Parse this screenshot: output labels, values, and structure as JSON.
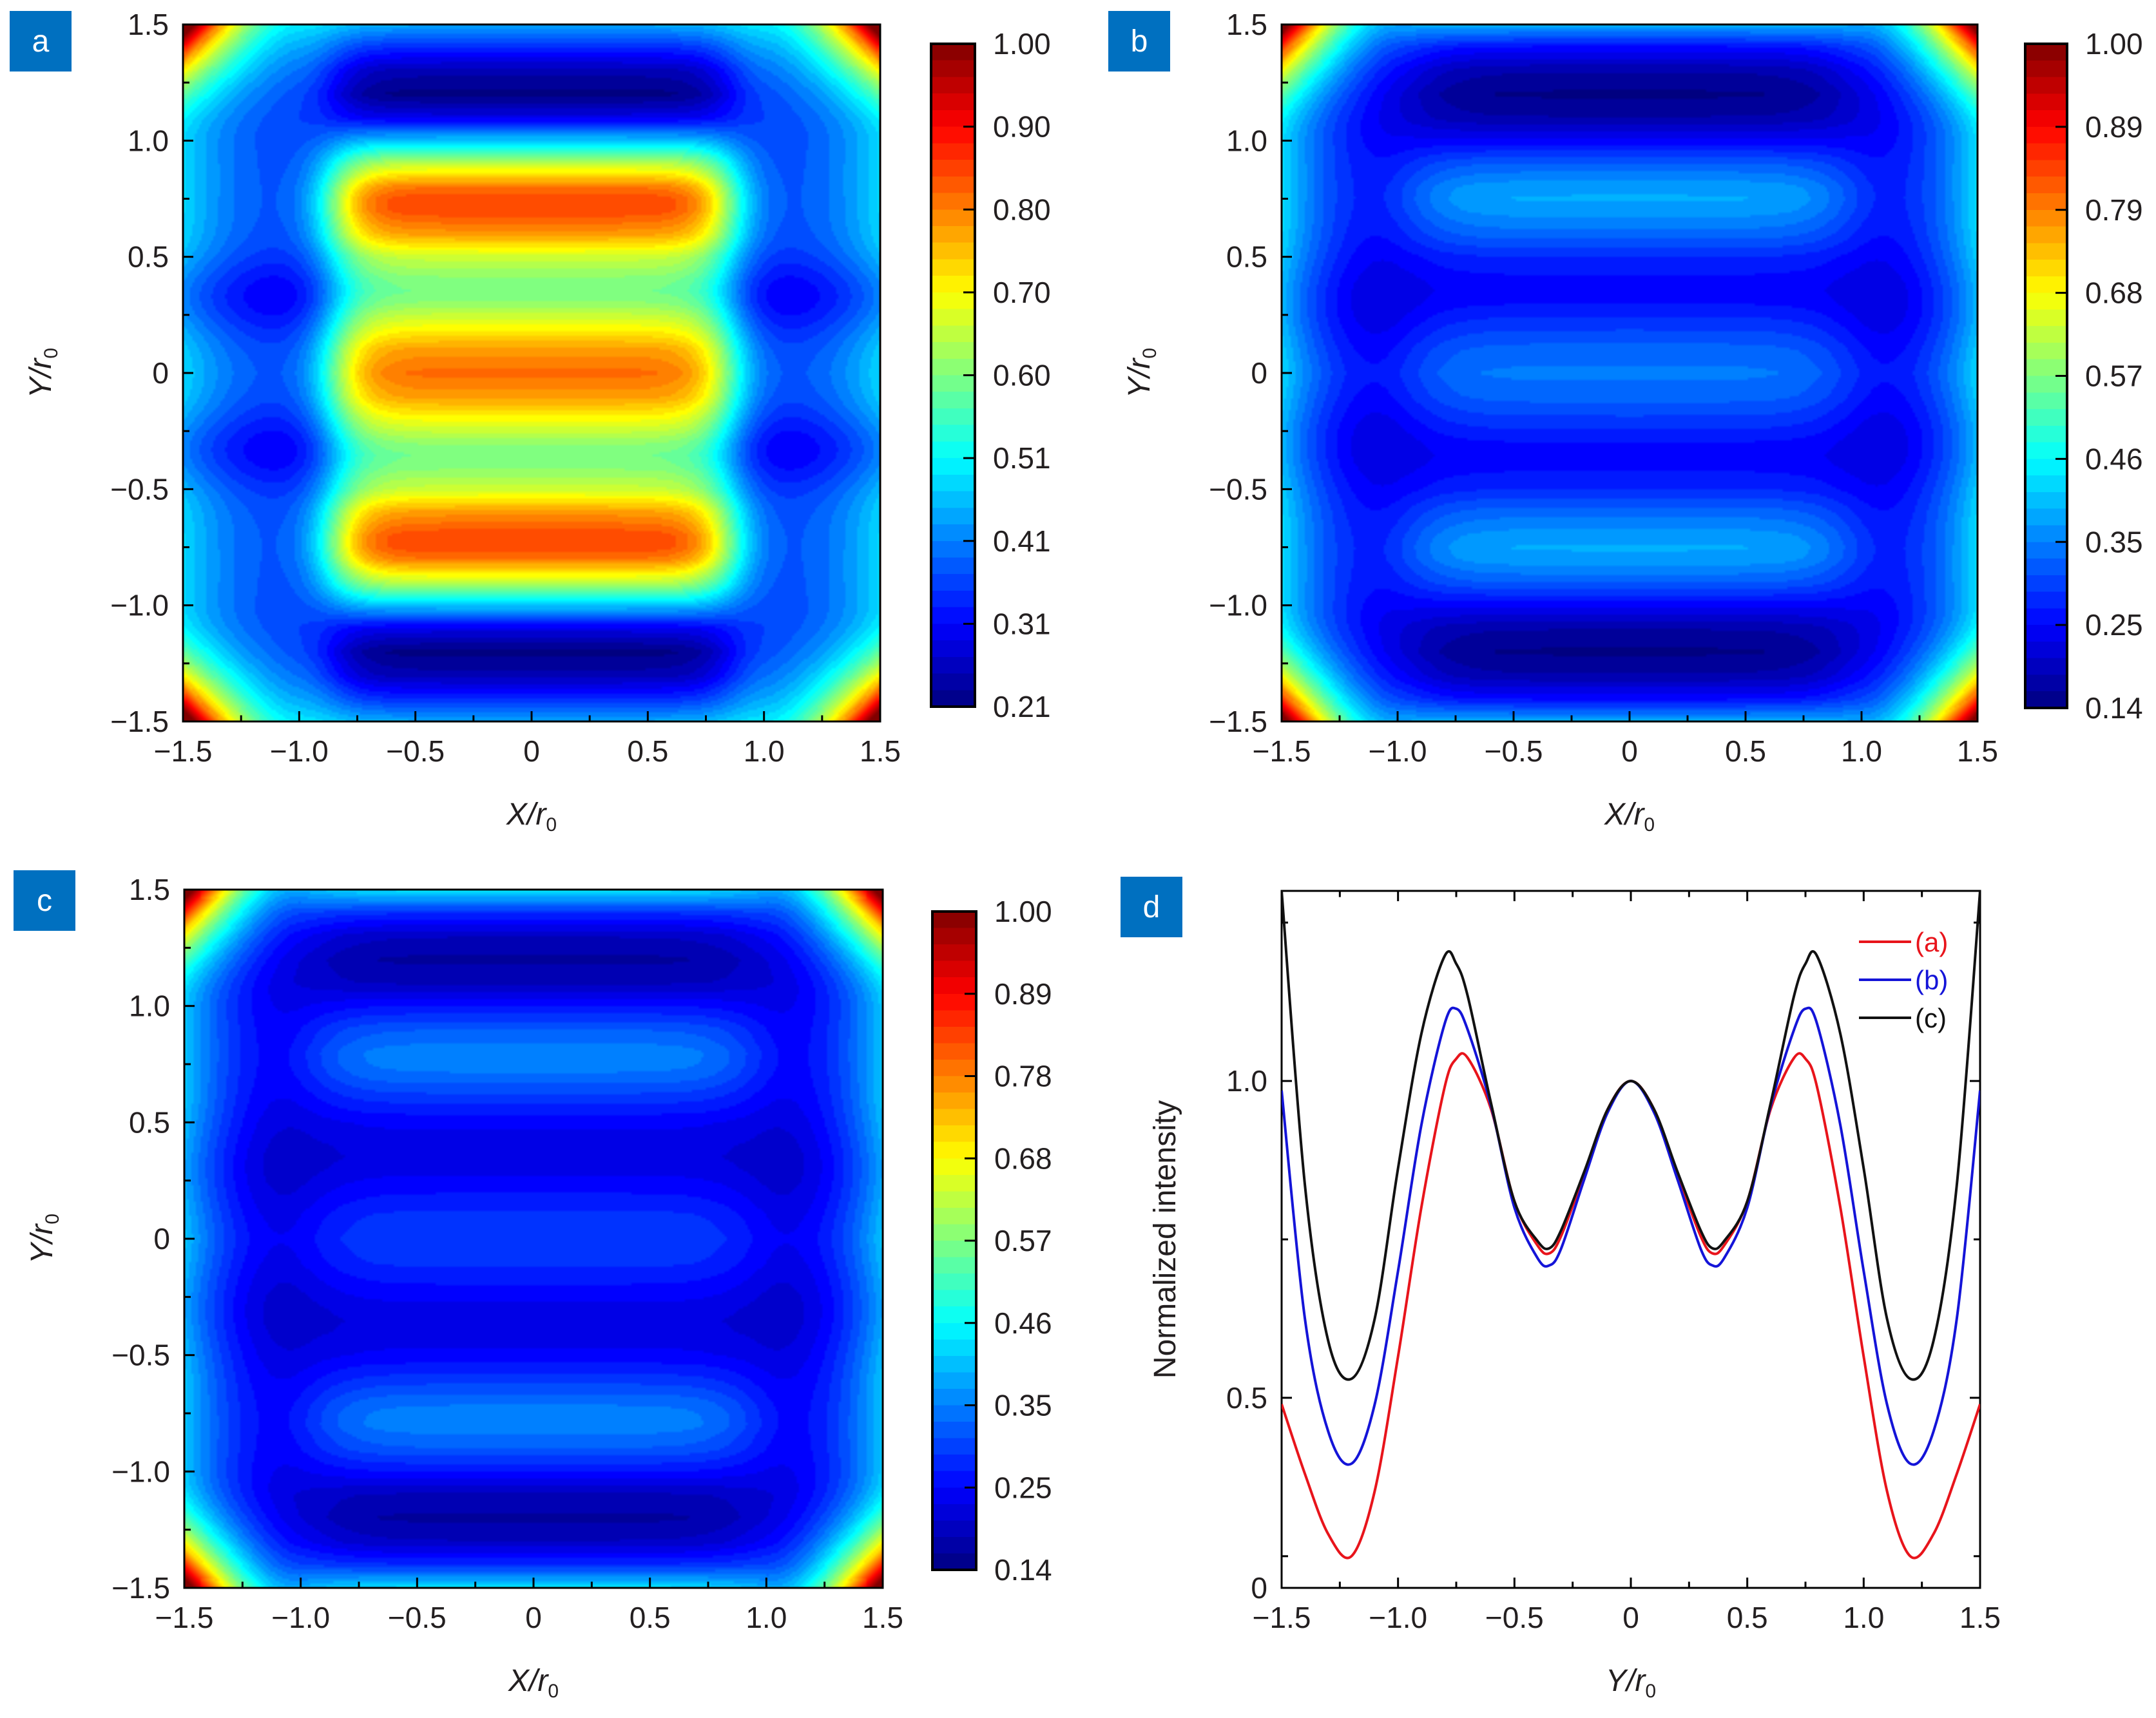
{
  "panel_label_color": "#0070c0",
  "chart_data": [
    {
      "panel": "a",
      "type": "heatmap",
      "colormap": "jet",
      "xlabel": "X/r0",
      "ylabel": "Y/r0",
      "xlim": [
        -1.5,
        1.5
      ],
      "ylim": [
        -1.5,
        1.5
      ],
      "xticks": [
        "-1.5",
        "-1.0",
        "-0.5",
        "0",
        "0.5",
        "1.0",
        "1.5"
      ],
      "yticks": [
        "-1.5",
        "-1.0",
        "-0.5",
        "0",
        "0.5",
        "1.0",
        "1.5"
      ],
      "colorbar": {
        "range": [
          0.21,
          1.0
        ],
        "ticks": [
          "1.00",
          "0.90",
          "0.80",
          "0.70",
          "0.60",
          "0.51",
          "0.41",
          "0.31",
          "0.21"
        ]
      },
      "profile_series": "(a)"
    },
    {
      "panel": "b",
      "type": "heatmap",
      "colormap": "jet",
      "xlabel": "X/r0",
      "ylabel": "Y/r0",
      "xlim": [
        -1.5,
        1.5
      ],
      "ylim": [
        -1.5,
        1.5
      ],
      "xticks": [
        "-1.5",
        "-1.0",
        "-0.5",
        "0",
        "0.5",
        "1.0",
        "1.5"
      ],
      "yticks": [
        "-1.5",
        "-1.0",
        "-0.5",
        "0",
        "0.5",
        "1.0",
        "1.5"
      ],
      "colorbar": {
        "range": [
          0.14,
          1.0
        ],
        "ticks": [
          "1.00",
          "0.89",
          "0.79",
          "0.68",
          "0.57",
          "0.46",
          "0.35",
          "0.25",
          "0.14"
        ]
      },
      "profile_series": "(b)"
    },
    {
      "panel": "c",
      "type": "heatmap",
      "colormap": "jet",
      "xlabel": "X/r0",
      "ylabel": "Y/r0",
      "xlim": [
        -1.5,
        1.5
      ],
      "ylim": [
        -1.5,
        1.5
      ],
      "xticks": [
        "-1.5",
        "-1.0",
        "-0.5",
        "0",
        "0.5",
        "1.0",
        "1.5"
      ],
      "yticks": [
        "-1.5",
        "-1.0",
        "-0.5",
        "0",
        "0.5",
        "1.0",
        "1.5"
      ],
      "colorbar": {
        "range": [
          0.14,
          1.0
        ],
        "ticks": [
          "1.00",
          "0.89",
          "0.78",
          "0.68",
          "0.57",
          "0.46",
          "0.35",
          "0.25",
          "0.14"
        ]
      },
      "profile_series": "(c)"
    },
    {
      "panel": "d",
      "type": "line",
      "xlabel": "Y/r0",
      "ylabel": "Normalized intensity",
      "xlim": [
        -1.5,
        1.5
      ],
      "ylim": [
        0.2,
        1.3
      ],
      "xticks": [
        "-1.5",
        "-1.0",
        "-0.5",
        "0",
        "0.5",
        "1.0",
        "1.5"
      ],
      "yticks": [
        {
          "value": 0.2,
          "label": "0"
        },
        {
          "value": 0.5,
          "label": "0.5"
        },
        {
          "value": 1.0,
          "label": "1.0"
        }
      ],
      "legend": "top-right",
      "x": [
        -1.5,
        -1.4,
        -1.3,
        -1.2,
        -1.1,
        -1.0,
        -0.9,
        -0.8,
        -0.75,
        -0.7,
        -0.6,
        -0.5,
        -0.4,
        -0.35,
        -0.3,
        -0.2,
        -0.1,
        0,
        0.1,
        0.2,
        0.3,
        0.35,
        0.4,
        0.5,
        0.6,
        0.7,
        0.75,
        0.8,
        0.9,
        1.0,
        1.1,
        1.2,
        1.3,
        1.4,
        1.5
      ],
      "series": [
        {
          "name": "(a)",
          "color": "#e8141b",
          "values": [
            0.49,
            0.38,
            0.285,
            0.25,
            0.353,
            0.565,
            0.8,
            0.99,
            1.035,
            1.036,
            0.955,
            0.81,
            0.74,
            0.728,
            0.755,
            0.853,
            0.955,
            1.0,
            0.955,
            0.853,
            0.755,
            0.728,
            0.74,
            0.81,
            0.955,
            1.036,
            1.035,
            0.99,
            0.8,
            0.565,
            0.353,
            0.25,
            0.285,
            0.38,
            0.49
          ]
        },
        {
          "name": "(b)",
          "color": "#1414d8",
          "values": [
            0.985,
            0.625,
            0.447,
            0.396,
            0.49,
            0.7,
            0.93,
            1.09,
            1.114,
            1.08,
            0.96,
            0.8,
            0.72,
            0.709,
            0.735,
            0.845,
            0.95,
            1.0,
            0.95,
            0.845,
            0.735,
            0.709,
            0.72,
            0.8,
            0.96,
            1.08,
            1.114,
            1.09,
            0.93,
            0.7,
            0.49,
            0.396,
            0.447,
            0.625,
            0.985
          ]
        },
        {
          "name": "(c)",
          "color": "#111111",
          "values": [
            1.3,
            0.836,
            0.59,
            0.53,
            0.625,
            0.862,
            1.074,
            1.197,
            1.185,
            1.133,
            0.964,
            0.81,
            0.747,
            0.736,
            0.764,
            0.857,
            0.955,
            1.0,
            0.955,
            0.857,
            0.764,
            0.736,
            0.747,
            0.81,
            0.964,
            1.133,
            1.185,
            1.197,
            1.074,
            0.862,
            0.625,
            0.53,
            0.59,
            0.836,
            1.3
          ]
        }
      ]
    }
  ]
}
